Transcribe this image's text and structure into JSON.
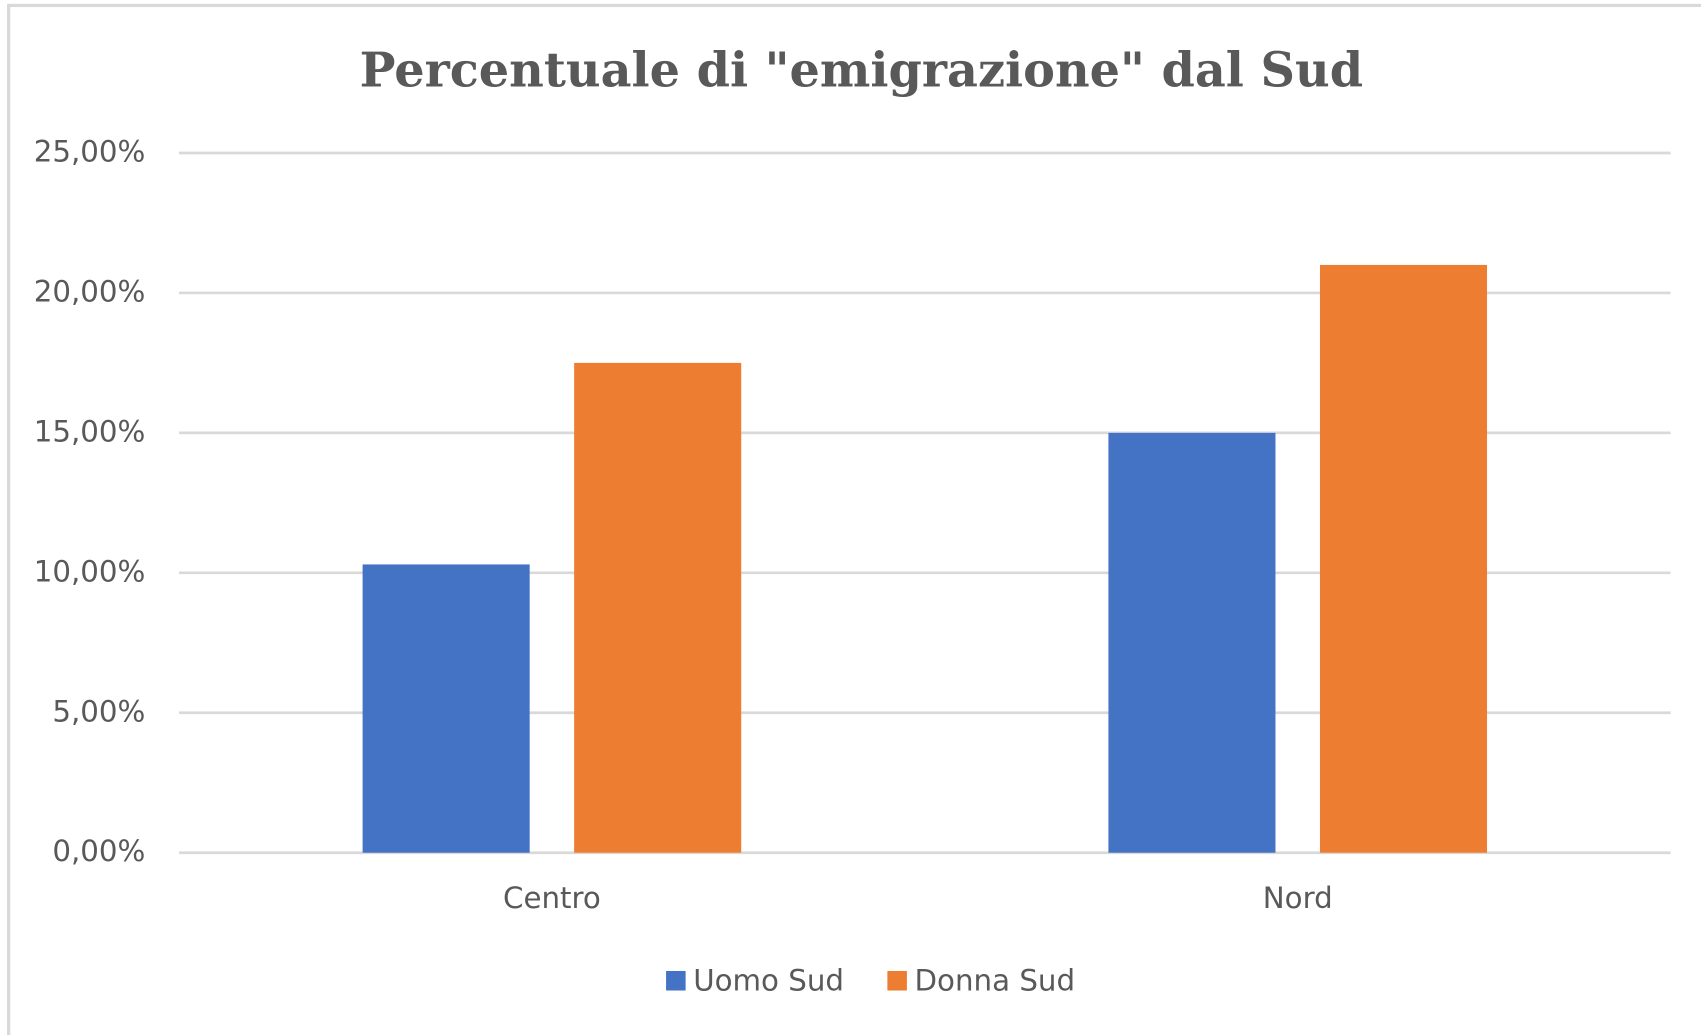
{
  "chart_data": {
    "type": "bar",
    "title": "Percentuale di \"emigrazione\" dal Sud",
    "categories": [
      "Centro",
      "Nord"
    ],
    "series": [
      {
        "name": "Uomo Sud",
        "color": "#4472c4",
        "values": [
          10.3,
          15.0
        ]
      },
      {
        "name": "Donna Sud",
        "color": "#ed7d31",
        "values": [
          17.5,
          21.0
        ]
      }
    ],
    "ylim": [
      0,
      25
    ],
    "yticks": [
      {
        "value": 0,
        "label": "0,00%"
      },
      {
        "value": 5,
        "label": "5,00%"
      },
      {
        "value": 10,
        "label": "10,00%"
      },
      {
        "value": 15,
        "label": "15,00%"
      },
      {
        "value": 20,
        "label": "20,00%"
      },
      {
        "value": 25,
        "label": "25,00%"
      }
    ],
    "grid": true,
    "legend": "bottom"
  }
}
